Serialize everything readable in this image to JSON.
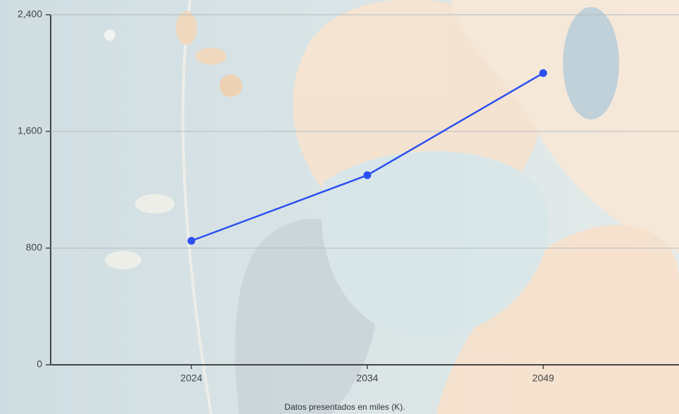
{
  "chart_data": {
    "type": "line",
    "caption": "Datos presentados en miles (K).",
    "categories": [
      "2024",
      "2034",
      "2049"
    ],
    "series": [
      {
        "color": "#2b4ff0",
        "values": [
          850,
          1300,
          2000
        ]
      }
    ],
    "ylim": [
      0,
      2400
    ],
    "yticks": [
      0,
      800,
      {
        "value": 1600,
        "label": "1,600"
      },
      {
        "value": 2400,
        "label": "2,400"
      }
    ],
    "grid": true
  }
}
